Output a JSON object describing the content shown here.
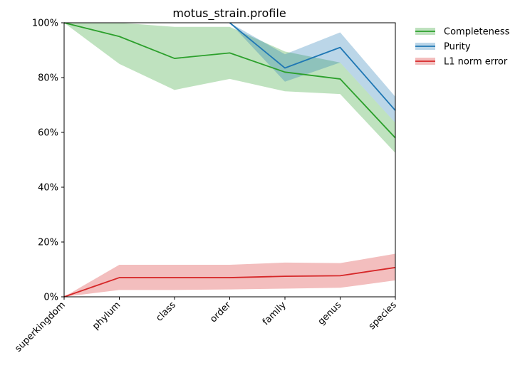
{
  "chart_data": {
    "type": "line",
    "title": "motus_strain.profile",
    "xlabel": "",
    "ylabel": "",
    "categories": [
      "superkingdom",
      "phylum",
      "class",
      "order",
      "family",
      "genus",
      "species"
    ],
    "ylim": [
      0,
      1
    ],
    "yticks": [
      0,
      0.2,
      0.4,
      0.6,
      0.8,
      1.0
    ],
    "ytick_labels": [
      "0%",
      "20%",
      "40%",
      "60%",
      "80%",
      "100%"
    ],
    "grid": false,
    "legend_position": "outside-top-right",
    "series": [
      {
        "name": "Completeness",
        "color": "#2ca02c",
        "band_color": "#2ca02c",
        "values": [
          1.0,
          0.95,
          0.87,
          0.89,
          0.82,
          0.795,
          0.58
        ],
        "lower": [
          1.0,
          0.85,
          0.755,
          0.795,
          0.75,
          0.74,
          0.525
        ],
        "upper": [
          1.0,
          1.0,
          0.985,
          0.985,
          0.895,
          0.855,
          0.635
        ]
      },
      {
        "name": "Purity",
        "color": "#1f77b4",
        "band_color": "#1f77b4",
        "values": [
          null,
          null,
          null,
          1.0,
          0.835,
          0.91,
          0.68
        ],
        "lower": [
          null,
          null,
          null,
          1.0,
          0.785,
          0.855,
          0.635
        ],
        "upper": [
          null,
          null,
          null,
          1.0,
          0.885,
          0.965,
          0.73
        ]
      },
      {
        "name": "L1 norm error",
        "color": "#d62728",
        "band_color": "#d62728",
        "values": [
          0.0,
          0.07,
          0.07,
          0.07,
          0.075,
          0.077,
          0.107
        ],
        "lower": [
          0.0,
          0.025,
          0.025,
          0.027,
          0.03,
          0.033,
          0.06
        ],
        "upper": [
          0.0,
          0.117,
          0.117,
          0.117,
          0.125,
          0.123,
          0.157
        ]
      }
    ]
  }
}
